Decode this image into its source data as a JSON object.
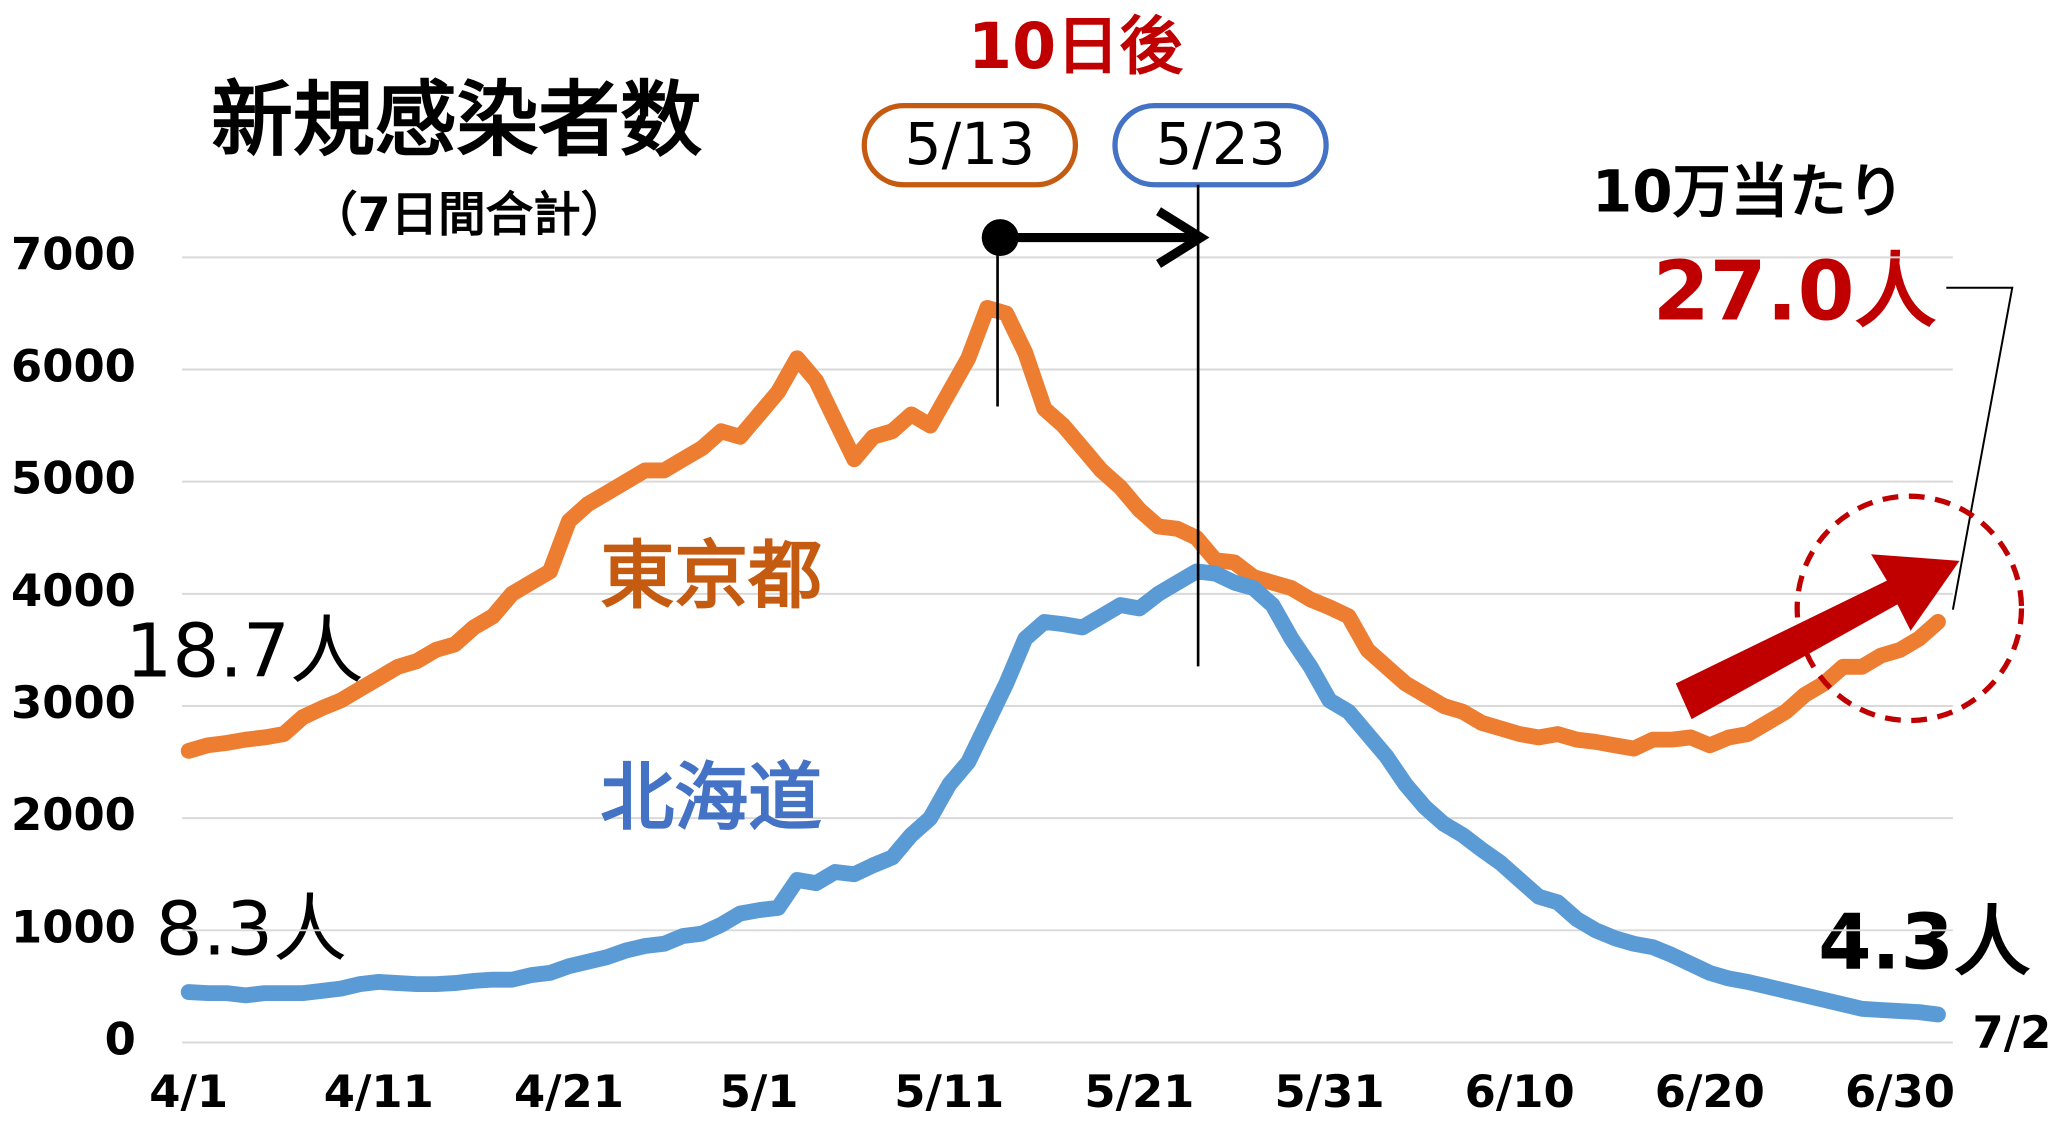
{
  "chart_data": {
    "type": "line",
    "title": "新規感染者数",
    "subtitle": "（7日間合計）",
    "annotations": {
      "shift": "10日後",
      "from": "5/13",
      "to": "5/23",
      "per": "10万当たり",
      "tokyo_end": "27.0人",
      "tokyo_start": "18.7人",
      "hokkaido_start": "8.3人",
      "hokkaido_end": "4.3人"
    },
    "categories": [
      "4/1",
      null,
      null,
      null,
      null,
      null,
      null,
      null,
      null,
      null,
      "4/11",
      null,
      null,
      null,
      null,
      null,
      null,
      null,
      null,
      null,
      "4/21",
      null,
      null,
      null,
      null,
      null,
      null,
      null,
      null,
      null,
      "5/1",
      null,
      null,
      null,
      null,
      null,
      null,
      null,
      null,
      null,
      "5/11",
      null,
      null,
      null,
      null,
      null,
      null,
      null,
      null,
      null,
      "5/21",
      null,
      null,
      null,
      null,
      null,
      null,
      null,
      null,
      null,
      "5/31",
      null,
      null,
      null,
      null,
      null,
      null,
      null,
      null,
      null,
      "6/10",
      null,
      null,
      null,
      null,
      null,
      null,
      null,
      null,
      null,
      "6/20",
      null,
      null,
      null,
      null,
      null,
      null,
      null,
      null,
      null,
      "6/30",
      null,
      "7/2"
    ],
    "series": [
      {
        "name": "東京都",
        "color": "#ED7D31",
        "label_color": "#C55A11",
        "values": [
          2600,
          2650,
          2670,
          2700,
          2720,
          2750,
          2900,
          2980,
          3050,
          3150,
          3250,
          3350,
          3400,
          3500,
          3550,
          3700,
          3800,
          4000,
          4100,
          4200,
          4650,
          4800,
          4900,
          5000,
          5100,
          5100,
          5200,
          5300,
          5450,
          5400,
          5600,
          5800,
          6100,
          5900,
          5550,
          5200,
          5400,
          5450,
          5600,
          5500,
          5800,
          6100,
          6550,
          6500,
          6150,
          5650,
          5500,
          5300,
          5100,
          4950,
          4750,
          4600,
          4580,
          4500,
          4300,
          4280,
          4150,
          4100,
          4050,
          3950,
          3880,
          3800,
          3500,
          3350,
          3200,
          3100,
          3000,
          2950,
          2850,
          2800,
          2750,
          2720,
          2750,
          2700,
          2680,
          2650,
          2620,
          2700,
          2700,
          2720,
          2650,
          2720,
          2750,
          2850,
          2950,
          3100,
          3200,
          3350,
          3350,
          3450,
          3500,
          3600,
          3750
        ]
      },
      {
        "name": "北海道",
        "color": "#5B9BD5",
        "label_color": "#4472C4",
        "values": [
          450,
          440,
          440,
          420,
          440,
          440,
          440,
          460,
          480,
          520,
          540,
          530,
          520,
          520,
          530,
          550,
          560,
          560,
          600,
          620,
          680,
          720,
          760,
          820,
          860,
          880,
          950,
          970,
          1050,
          1150,
          1180,
          1200,
          1450,
          1420,
          1520,
          1500,
          1580,
          1650,
          1850,
          2000,
          2300,
          2500,
          2850,
          3200,
          3600,
          3750,
          3730,
          3700,
          3800,
          3900,
          3870,
          4000,
          4100,
          4200,
          4180,
          4100,
          4050,
          3900,
          3600,
          3350,
          3050,
          2950,
          2750,
          2550,
          2300,
          2100,
          1950,
          1850,
          1720,
          1600,
          1450,
          1300,
          1250,
          1100,
          1000,
          930,
          880,
          850,
          780,
          700,
          620,
          570,
          540,
          500,
          460,
          420,
          380,
          340,
          300,
          290,
          280,
          270,
          250
        ]
      }
    ],
    "ylim": [
      0,
      7000
    ],
    "yticks": [
      0,
      1000,
      2000,
      3000,
      4000,
      5000,
      6000,
      7000
    ],
    "grid": true
  }
}
